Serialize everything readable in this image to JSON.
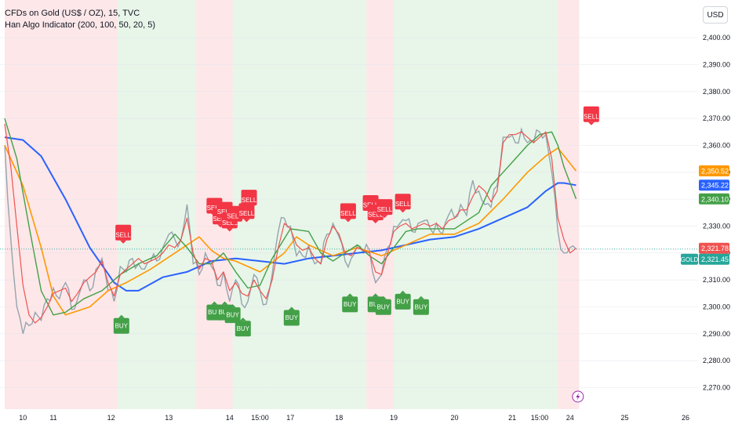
{
  "header": {
    "symbol_line": "CFDs on Gold (US$ / OZ), 15, TVC",
    "indicator_line": "Han Algo Indicator (200, 100, 50, 20, 5)",
    "currency_button": "USD"
  },
  "chart_data": {
    "type": "line",
    "title": "CFDs on Gold (US$ / OZ), 15, TVC",
    "y_axis": {
      "min": 2262,
      "max": 2414,
      "ticks": [
        "2,400.00",
        "2,390.00",
        "2,380.00",
        "2,370.00",
        "2,360.00",
        "2,350.00",
        "2,340.00",
        "2,330.00",
        "2,320.00",
        "2,310.00",
        "2,300.00",
        "2,290.00",
        "2,280.00",
        "2,270.00"
      ],
      "tick_values": [
        2400,
        2390,
        2380,
        2370,
        2360,
        2350,
        2340,
        2330,
        2320,
        2310,
        2300,
        2290,
        2280,
        2270
      ]
    },
    "x_axis": {
      "labels": [
        {
          "text": "10",
          "pos": 3
        },
        {
          "text": "11",
          "pos": 8
        },
        {
          "text": "12",
          "pos": 17.5
        },
        {
          "text": "13",
          "pos": 27
        },
        {
          "text": "14",
          "pos": 37
        },
        {
          "text": "15:00",
          "pos": 42
        },
        {
          "text": "17",
          "pos": 47
        },
        {
          "text": "18",
          "pos": 55
        },
        {
          "text": "19",
          "pos": 64
        },
        {
          "text": "20",
          "pos": 74
        },
        {
          "text": "21",
          "pos": 83.5
        },
        {
          "text": "15:00",
          "pos": 88
        },
        {
          "text": "24",
          "pos": 93
        },
        {
          "text": "25",
          "pos": 102
        },
        {
          "text": "26",
          "pos": 112
        }
      ],
      "pos_max": 120
    },
    "background_zones": [
      {
        "from": 0,
        "to": 18.5,
        "trend": "bearish"
      },
      {
        "from": 18.5,
        "to": 31.5,
        "trend": "bullish"
      },
      {
        "from": 31.5,
        "to": 37.5,
        "trend": "bearish"
      },
      {
        "from": 37.5,
        "to": 43.5,
        "trend": "bullish"
      },
      {
        "from": 43.5,
        "to": 59.5,
        "trend": "bullish"
      },
      {
        "from": 59.5,
        "to": 64,
        "trend": "bearish"
      },
      {
        "from": 64,
        "to": 91,
        "trend": "bullish"
      },
      {
        "from": 91,
        "to": 94.5,
        "trend": "bearish"
      }
    ],
    "series": [
      {
        "name": "",
        "color": "#2962ff",
        "width": 2,
        "x": [
          0,
          3,
          6,
          10,
          14,
          18,
          20,
          22,
          26,
          30,
          34,
          38,
          42,
          46,
          50,
          54,
          58,
          62,
          66,
          70,
          74,
          78,
          82,
          86,
          89,
          91,
          92,
          94
        ],
        "y": [
          2363,
          2362,
          2356,
          2340,
          2322,
          2309,
          2306,
          2306,
          2311,
          2313,
          2317,
          2318,
          2317,
          2316,
          2318,
          2319,
          2320,
          2321,
          2323,
          2325,
          2326,
          2329,
          2333,
          2337,
          2343,
          2346,
          2346,
          2345.2
        ]
      },
      {
        "name": "",
        "color": "#ff9800",
        "width": 1.6,
        "x": [
          0,
          3,
          6,
          8,
          10,
          14,
          17,
          20,
          24,
          28,
          32,
          34,
          36,
          38,
          42,
          46,
          48,
          50,
          54,
          58,
          62,
          66,
          70,
          74,
          78,
          82,
          86,
          89,
          91,
          94
        ],
        "y": [
          2360,
          2345,
          2322,
          2304,
          2297,
          2300,
          2306,
          2309,
          2314,
          2320,
          2326,
          2321,
          2318,
          2317,
          2313,
          2320,
          2326,
          2323,
          2319,
          2322,
          2319,
          2323,
          2327,
          2327,
          2331,
          2340,
          2350,
          2356,
          2359,
          2350.5
        ]
      },
      {
        "name": "",
        "color": "#43a047",
        "width": 1.4,
        "x": [
          0,
          2,
          4,
          6,
          8,
          10,
          13,
          16,
          19,
          22,
          25,
          28,
          30,
          32,
          34,
          36,
          38,
          40,
          42,
          44,
          47,
          50,
          52,
          54,
          56,
          58,
          60,
          62,
          64,
          66,
          68,
          70,
          74,
          78,
          80,
          82,
          84,
          86,
          88,
          90,
          91,
          92,
          94
        ],
        "y": [
          2370,
          2355,
          2330,
          2306,
          2297,
          2298,
          2303,
          2306,
          2312,
          2316,
          2319,
          2327,
          2322,
          2316,
          2316,
          2320,
          2313,
          2307,
          2308,
          2318,
          2329,
          2328,
          2320,
          2317,
          2320,
          2323,
          2319,
          2316,
          2322,
          2328,
          2329,
          2329,
          2329,
          2335,
          2345,
          2350,
          2355,
          2360,
          2364,
          2365,
          2360,
          2352,
          2340.1
        ]
      },
      {
        "name": "",
        "color": "#ef5350",
        "width": 1.2,
        "x": [
          0,
          1,
          2,
          3,
          4,
          5,
          6,
          7,
          8,
          9,
          10,
          11,
          12,
          13,
          14,
          15,
          16,
          17,
          18,
          19,
          20,
          21,
          22,
          23,
          24,
          25,
          26,
          27,
          28,
          29,
          30,
          31,
          32,
          33,
          34,
          35,
          36,
          37,
          38,
          39,
          40,
          41,
          42,
          43,
          44,
          45,
          46,
          47,
          48,
          49,
          50,
          51,
          52,
          53,
          54,
          55,
          56,
          57,
          58,
          59,
          60,
          61,
          62,
          63,
          64,
          65,
          66,
          67,
          68,
          69,
          70,
          71,
          72,
          73,
          74,
          75,
          76,
          77,
          78,
          79,
          80,
          81,
          82,
          83,
          84,
          85,
          86,
          87,
          88,
          89,
          90,
          91,
          92,
          93,
          94
        ],
        "y": [
          2368,
          2352,
          2330,
          2308,
          2297,
          2294,
          2296,
          2300,
          2305,
          2306,
          2307,
          2302,
          2305,
          2309,
          2311,
          2313,
          2317,
          2309,
          2304,
          2312,
          2314,
          2316,
          2318,
          2316,
          2317,
          2318,
          2320,
          2323,
          2322,
          2325,
          2333,
          2320,
          2314,
          2318,
          2317,
          2310,
          2313,
          2306,
          2309,
          2305,
          2304,
          2310,
          2306,
          2303,
          2310,
          2322,
          2331,
          2329,
          2323,
          2321,
          2322,
          2318,
          2316,
          2325,
          2330,
          2327,
          2320,
          2319,
          2322,
          2321,
          2320,
          2313,
          2312,
          2320,
          2328,
          2330,
          2331,
          2329,
          2330,
          2331,
          2330,
          2331,
          2329,
          2332,
          2333,
          2336,
          2336,
          2341,
          2345,
          2343,
          2339,
          2343,
          2361,
          2364,
          2364,
          2365,
          2363,
          2361,
          2363,
          2365,
          2355,
          2333,
          2325,
          2320,
          2321.8
        ]
      }
    ],
    "price": {
      "x": [
        0,
        1,
        2,
        3,
        4,
        5,
        6,
        7,
        8,
        9,
        10,
        11,
        12,
        13,
        14,
        15,
        16,
        17,
        18,
        19,
        20,
        21,
        22,
        23,
        24,
        25,
        26,
        27,
        28,
        29,
        30,
        31,
        32,
        33,
        34,
        35,
        36,
        37,
        38,
        39,
        40,
        41,
        42,
        43,
        44,
        45,
        46,
        47,
        48,
        49,
        50,
        51,
        52,
        53,
        54,
        55,
        56,
        57,
        58,
        59,
        60,
        61,
        62,
        63,
        64,
        65,
        66,
        67,
        68,
        69,
        70,
        71,
        72,
        73,
        74,
        75,
        76,
        77,
        78,
        79,
        80,
        81,
        82,
        83,
        84,
        85,
        86,
        87,
        88,
        89,
        90,
        91,
        92,
        93,
        94
      ],
      "y": [
        2360,
        2325,
        2300,
        2290,
        2293,
        2298,
        2295,
        2303,
        2307,
        2303,
        2309,
        2299,
        2303,
        2310,
        2306,
        2314,
        2318,
        2306,
        2302,
        2315,
        2313,
        2318,
        2316,
        2314,
        2317,
        2317,
        2322,
        2327,
        2325,
        2325,
        2338,
        2316,
        2312,
        2320,
        2315,
        2308,
        2313,
        2302,
        2310,
        2301,
        2302,
        2312,
        2306,
        2301,
        2312,
        2328,
        2333,
        2330,
        2319,
        2319,
        2323,
        2316,
        2316,
        2327,
        2331,
        2326,
        2317,
        2318,
        2323,
        2320,
        2321,
        2309,
        2312,
        2322,
        2330,
        2331,
        2332,
        2328,
        2331,
        2332,
        2329,
        2331,
        2327,
        2334,
        2333,
        2338,
        2334,
        2347,
        2343,
        2338,
        2337,
        2345,
        2363,
        2363,
        2361,
        2366,
        2361,
        2361,
        2365,
        2364,
        2350,
        2328,
        2320,
        2322,
        2321.5
      ],
      "color": "#8a9ca6"
    },
    "signals": [
      {
        "type": "SELL",
        "x": 19.5,
        "y": 2323.5
      },
      {
        "type": "SELL",
        "x": 34.5,
        "y": 2333.5
      },
      {
        "type": "SELL",
        "x": 35.5,
        "y": 2329.5
      },
      {
        "type": "SELL",
        "x": 36.2,
        "y": 2332
      },
      {
        "type": "SELL",
        "x": 37,
        "y": 2328
      },
      {
        "type": "SELL",
        "x": 37.8,
        "y": 2330.5
      },
      {
        "type": "SELL",
        "x": 39.8,
        "y": 2331.5
      },
      {
        "type": "SELL",
        "x": 40.2,
        "y": 2336.5
      },
      {
        "type": "SELL",
        "x": 56.5,
        "y": 2331.5
      },
      {
        "type": "SELL",
        "x": 60.2,
        "y": 2334.5
      },
      {
        "type": "SELL",
        "x": 61,
        "y": 2331
      },
      {
        "type": "SELL",
        "x": 62.5,
        "y": 2333
      },
      {
        "type": "SELL",
        "x": 65.5,
        "y": 2335
      },
      {
        "type": "SELL",
        "x": 96.5,
        "y": 2367.5
      },
      {
        "type": "BUY",
        "x": 19.2,
        "y": 2297
      },
      {
        "type": "BUY",
        "x": 34.5,
        "y": 2302
      },
      {
        "type": "BUY",
        "x": 36.2,
        "y": 2302
      },
      {
        "type": "BUY",
        "x": 37.5,
        "y": 2301
      },
      {
        "type": "BUY",
        "x": 39.2,
        "y": 2296
      },
      {
        "type": "BUY",
        "x": 47.2,
        "y": 2300
      },
      {
        "type": "BUY",
        "x": 56.8,
        "y": 2305
      },
      {
        "type": "BUY",
        "x": 61,
        "y": 2305
      },
      {
        "type": "BUY",
        "x": 62.3,
        "y": 2304
      },
      {
        "type": "BUY",
        "x": 65.5,
        "y": 2306
      },
      {
        "type": "BUY",
        "x": 68.5,
        "y": 2304
      }
    ],
    "price_tags": [
      {
        "value": 2350.52,
        "label": "2,350.52",
        "color": "#ff9800"
      },
      {
        "value": 2345.22,
        "label": "2,345.22",
        "color": "#2962ff"
      },
      {
        "value": 2340.1,
        "label": "2,340.10",
        "color": "#43a047"
      },
      {
        "value": 2321.78,
        "label": "2,321.78",
        "color": "#ef5350"
      },
      {
        "value": 2321.45,
        "label": "2,321.45",
        "color": "#26a69a",
        "symbol": "GOLD"
      }
    ],
    "last_price_line": 2321.45,
    "bullish_color": "#e8f5e9",
    "bearish_color": "#fde7e9",
    "sell_color": "#f23645",
    "buy_color": "#43a047",
    "marker_icon": "lightning-icon"
  }
}
